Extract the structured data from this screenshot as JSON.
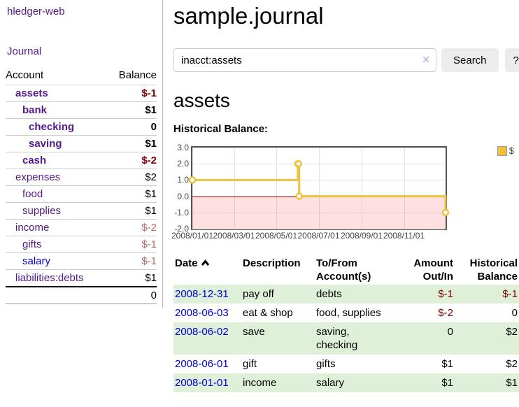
{
  "colors": {
    "link_purple": "#551a8b",
    "link_blue": "#0000d8",
    "negative_strong": "#7d0000",
    "negative_soft": "#b36a6a",
    "row_highlight_green": "#dff0d8",
    "chart_line_gold": "#edc240",
    "chart_zero_line": "#990000",
    "chart_negative_fill_alpha": "rgba(255,0,0,0.12)"
  },
  "sidebar": {
    "brand": "hledger-web",
    "nav": {
      "journal": "Journal"
    },
    "accounts_table": {
      "headers": {
        "account": "Account",
        "balance": "Balance"
      },
      "rows": [
        {
          "account": "assets",
          "balance": "$-1"
        },
        {
          "account": "bank",
          "balance": "$1"
        },
        {
          "account": "checking",
          "balance": "0"
        },
        {
          "account": "saving",
          "balance": "$1"
        },
        {
          "account": "cash",
          "balance": "$-2"
        },
        {
          "account": "expenses",
          "balance": "$2"
        },
        {
          "account": "food",
          "balance": "$1"
        },
        {
          "account": "supplies",
          "balance": "$1"
        },
        {
          "account": "income",
          "balance": "$-2"
        },
        {
          "account": "gifts",
          "balance": "$-1"
        },
        {
          "account": "salary",
          "balance": "$-1"
        },
        {
          "account": "liabilities:debts",
          "balance": "$1"
        }
      ],
      "total": "0"
    }
  },
  "main": {
    "title": "sample.journal",
    "search": {
      "value": "inacct:assets",
      "clear_icon": "✕",
      "search_button": "Search",
      "help_button": "?"
    },
    "account_heading": "assets",
    "chart_title": "Historical Balance:"
  },
  "chart_data": {
    "type": "line",
    "step": true,
    "title": "Historical Balance:",
    "legend": [
      {
        "name": "$",
        "color": "#edc240"
      }
    ],
    "x_range": [
      "2008/01/01",
      "2008/12/31"
    ],
    "ylim": [
      -2.0,
      3.0
    ],
    "y_ticks": [
      "3.0",
      "2.0",
      "1.0",
      "0.0",
      "-1.0",
      "-2.0"
    ],
    "x_ticks": [
      "2008/01/01",
      "2008/03/01",
      "2008/05/01",
      "2008/07/01",
      "2008/09/01",
      "2008/11/01"
    ],
    "grid": true,
    "negative_region_shaded": true,
    "legend_position": "top-right",
    "series": [
      {
        "name": "$",
        "points": [
          [
            "2008/01/01",
            1.0
          ],
          [
            "2008/06/01",
            2.0
          ],
          [
            "2008/06/02",
            2.0
          ],
          [
            "2008/06/03",
            0.0
          ],
          [
            "2008/12/31",
            -1.0
          ]
        ]
      }
    ]
  },
  "register": {
    "headers": [
      "Date",
      "Description",
      "To/From Account(s)",
      "Amount Out/In",
      "Historical Balance"
    ],
    "rows": [
      {
        "date": "2008-12-31",
        "description": "pay off",
        "accounts": "debts",
        "amount": "$-1",
        "balance": "$-1"
      },
      {
        "date": "2008-06-03",
        "description": "eat & shop",
        "accounts": "food, supplies",
        "amount": "$-2",
        "balance": "0"
      },
      {
        "date": "2008-06-02",
        "description": "save",
        "accounts": "saving,\nchecking",
        "amount": "0",
        "balance": "$2"
      },
      {
        "date": "2008-06-01",
        "description": "gift",
        "accounts": "gifts",
        "amount": "$1",
        "balance": "$2"
      },
      {
        "date": "2008-01-01",
        "description": "income",
        "accounts": "salary",
        "amount": "$1",
        "balance": "$1"
      }
    ]
  }
}
